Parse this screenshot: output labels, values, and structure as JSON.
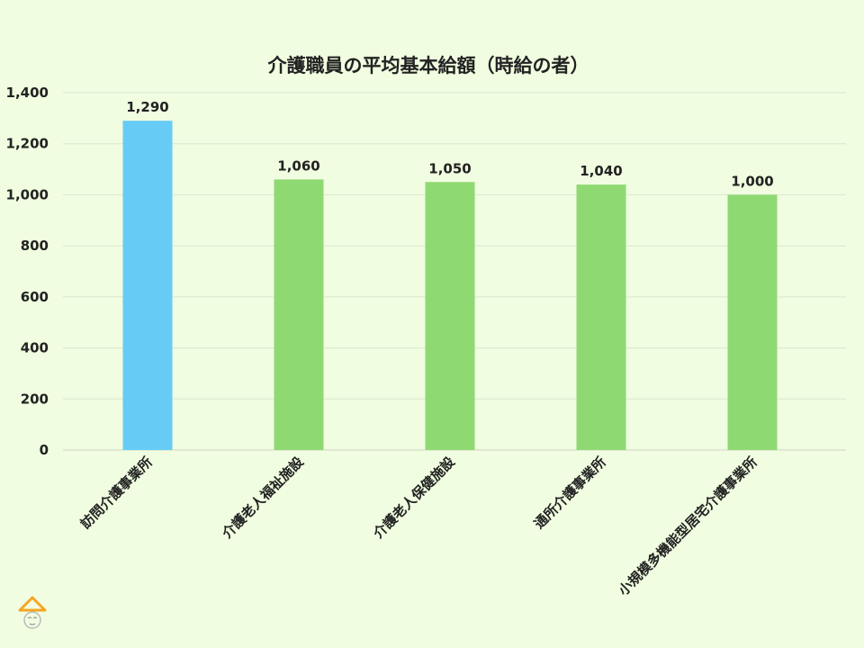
{
  "chart_data": {
    "type": "bar",
    "title": "介護職員の平均基本給額（時給の者）",
    "xlabel": "",
    "ylabel": "",
    "categories": [
      "訪問介護事業所",
      "介護老人福祉施設",
      "介護老人保健施設",
      "通所介護事業所",
      "小規模多機能型居宅介護事業所"
    ],
    "values": [
      1290,
      1060,
      1050,
      1040,
      1000
    ],
    "value_labels": [
      "1,290",
      "1,060",
      "1,050",
      "1,040",
      "1,000"
    ],
    "ylim": [
      0,
      1400
    ],
    "yticks": [
      0,
      200,
      400,
      600,
      800,
      1000,
      1200,
      1400
    ],
    "ytick_labels": [
      "0",
      "200",
      "400",
      "600",
      "800",
      "1,000",
      "1,200",
      "1,400"
    ],
    "bar_colors": [
      "#66ccf5",
      "#8fd973",
      "#8fd973",
      "#8fd973",
      "#8fd973"
    ],
    "grid": true,
    "legend": "none"
  },
  "colors": {
    "background": "#f0fde0",
    "logo": "#f5a623"
  }
}
